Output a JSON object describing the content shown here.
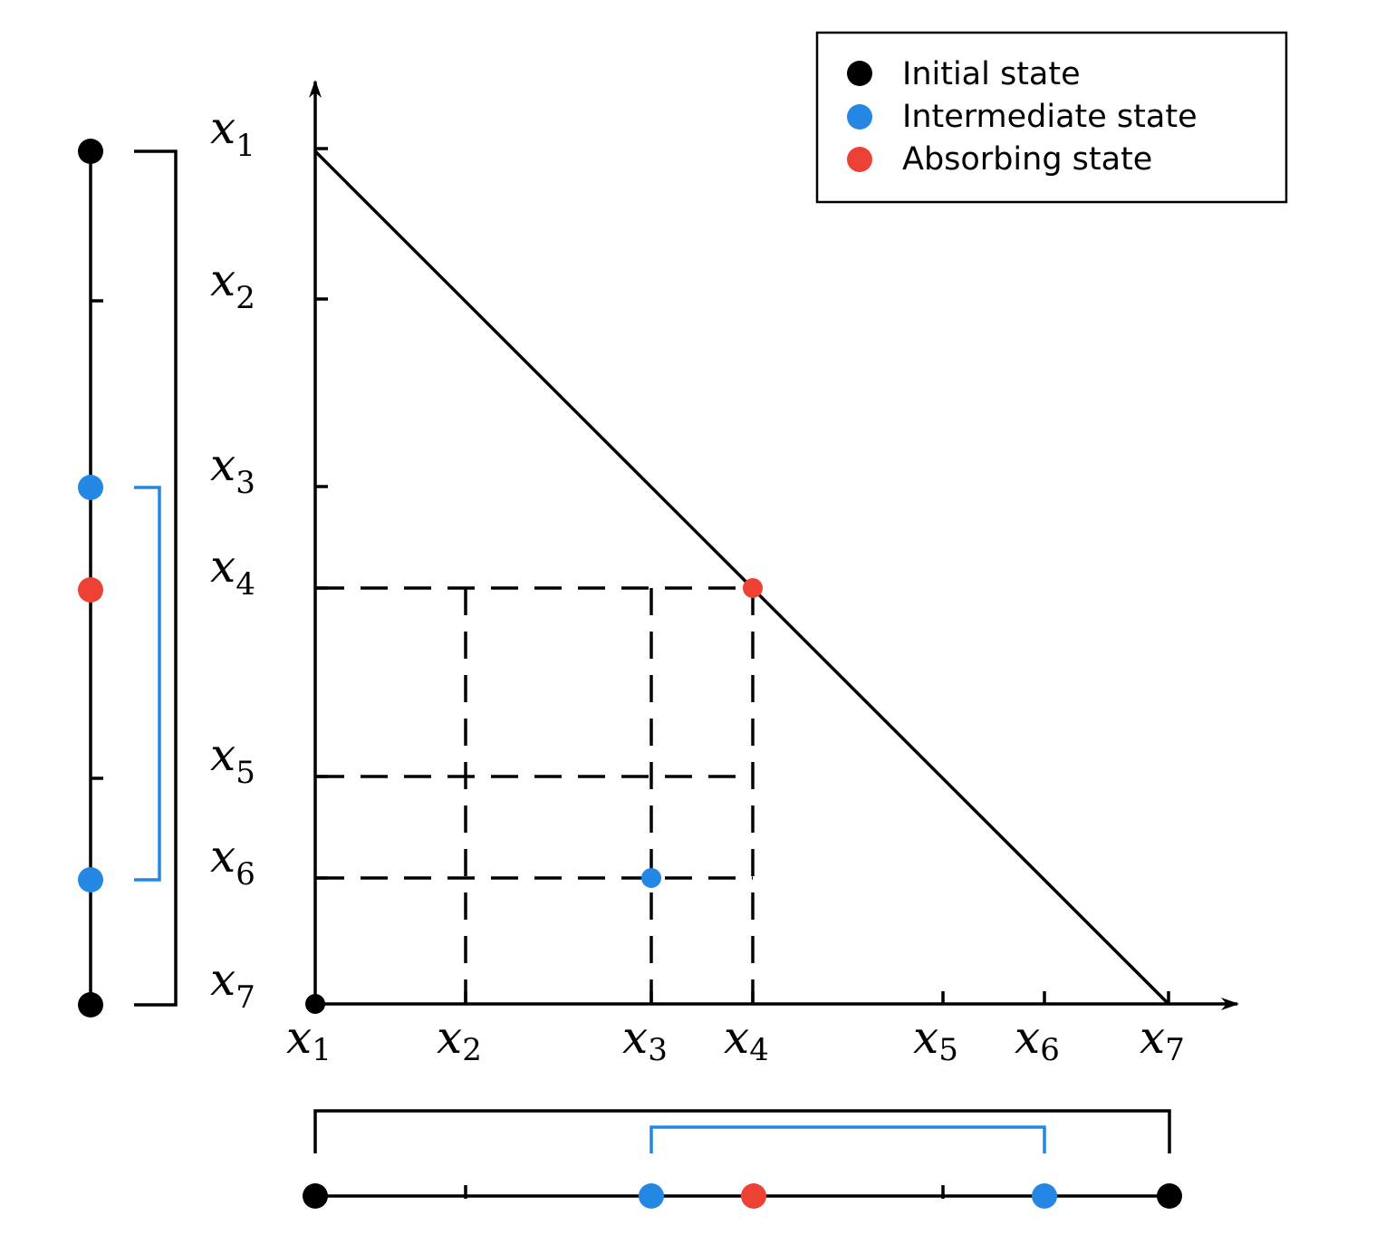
{
  "colors": {
    "initial": "#000000",
    "intermediate": "#2387e3",
    "absorbing": "#ee4136",
    "ink": "#000000"
  },
  "states": {
    "initial": [
      "x1",
      "x7"
    ],
    "intermediate": [
      "x3",
      "x6"
    ],
    "absorbing": "x4",
    "grid_point": [
      "x3",
      "x6"
    ]
  },
  "labels": {
    "y_axis": [
      {
        "base": "x",
        "sub": "1"
      },
      {
        "base": "x",
        "sub": "2"
      },
      {
        "base": "x",
        "sub": "3"
      },
      {
        "base": "x",
        "sub": "4"
      },
      {
        "base": "x",
        "sub": "5"
      },
      {
        "base": "x",
        "sub": "6"
      },
      {
        "base": "x",
        "sub": "7"
      }
    ],
    "x_axis": [
      {
        "base": "x",
        "sub": "1"
      },
      {
        "base": "x",
        "sub": "2"
      },
      {
        "base": "x",
        "sub": "3"
      },
      {
        "base": "x",
        "sub": "4"
      },
      {
        "base": "x",
        "sub": "5"
      },
      {
        "base": "x",
        "sub": "6"
      },
      {
        "base": "x",
        "sub": "7"
      }
    ]
  },
  "legend": {
    "items": [
      {
        "label": "Initial state",
        "color": "#000000"
      },
      {
        "label": "Intermediate state",
        "color": "#2387e3"
      },
      {
        "label": "Absorbing state",
        "color": "#ee4136"
      }
    ]
  }
}
